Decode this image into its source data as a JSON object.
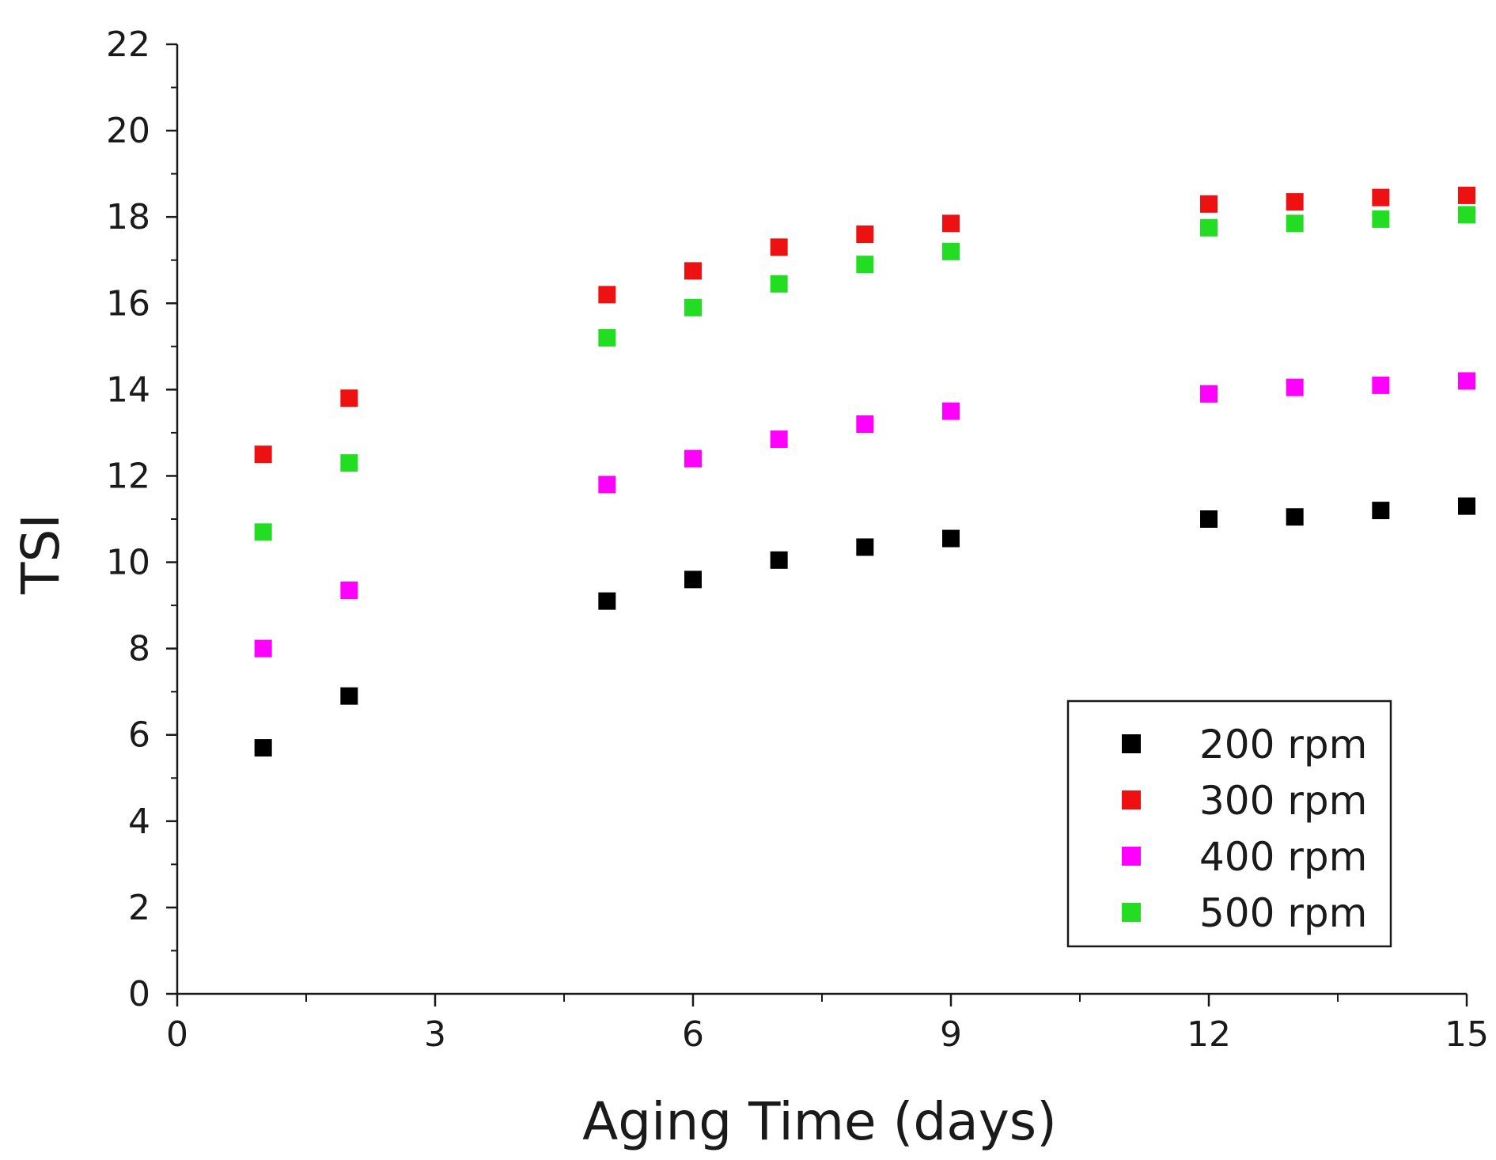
{
  "chart_data": {
    "type": "scatter",
    "xlabel": "Aging Time (days)",
    "ylabel": "TSI",
    "xlim": [
      0,
      15
    ],
    "ylim": [
      0,
      22
    ],
    "xticks": [
      0,
      3,
      6,
      9,
      12,
      15
    ],
    "yticks": [
      0,
      2,
      4,
      6,
      8,
      10,
      12,
      14,
      16,
      18,
      20,
      22
    ],
    "x_minor_step": 1.5,
    "y_minor_step": 1,
    "grid": false,
    "legend_position": "bottom-right",
    "x": [
      1,
      2,
      5,
      6,
      7,
      8,
      9,
      12,
      13,
      14,
      15
    ],
    "series": [
      {
        "name": "200 rpm",
        "color": "#000000",
        "values": [
          5.7,
          6.9,
          9.1,
          9.6,
          10.05,
          10.35,
          10.55,
          11.0,
          11.05,
          11.2,
          11.3
        ]
      },
      {
        "name": "300 rpm",
        "color": "#ee1111",
        "values": [
          12.5,
          13.8,
          16.2,
          16.75,
          17.3,
          17.6,
          17.85,
          18.3,
          18.35,
          18.45,
          18.5
        ]
      },
      {
        "name": "400 rpm",
        "color": "#ff00ff",
        "values": [
          8.0,
          9.35,
          11.8,
          12.4,
          12.85,
          13.2,
          13.5,
          13.9,
          14.05,
          14.1,
          14.2
        ]
      },
      {
        "name": "500 rpm",
        "color": "#22dd22",
        "values": [
          10.7,
          12.3,
          15.2,
          15.9,
          16.45,
          16.9,
          17.2,
          17.75,
          17.85,
          17.95,
          18.05
        ]
      }
    ]
  }
}
